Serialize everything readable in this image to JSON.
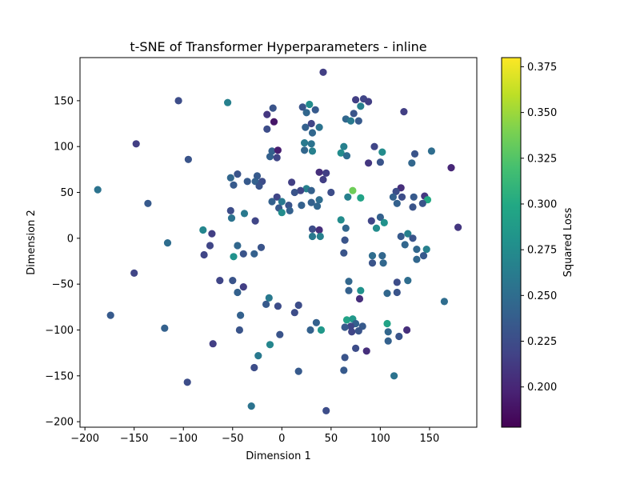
{
  "chart_data": {
    "type": "scatter",
    "title": "t-SNE of Transformer Hyperparameters - inline",
    "xlabel": "Dimension 1",
    "ylabel": "Dimension 2",
    "xlim": [
      -205,
      198
    ],
    "ylim": [
      -206,
      197
    ],
    "x_ticks": [
      -200,
      -150,
      -100,
      -50,
      0,
      50,
      100,
      150
    ],
    "y_ticks": [
      -200,
      -150,
      -100,
      -50,
      0,
      50,
      100,
      150
    ],
    "grid": false,
    "colorbar": {
      "label": "Squared Loss",
      "colormap": "viridis",
      "range": [
        0.178,
        0.38
      ],
      "ticks": [
        0.2,
        0.225,
        0.25,
        0.275,
        0.3,
        0.325,
        0.35,
        0.375
      ],
      "tick_labels": [
        "0.200",
        "0.225",
        "0.250",
        "0.275",
        "0.300",
        "0.325",
        "0.350",
        "0.375"
      ]
    },
    "points": [
      {
        "x": 42,
        "y": 181,
        "v": 0.215
      },
      {
        "x": -105,
        "y": 150,
        "v": 0.225
      },
      {
        "x": -55,
        "y": 148,
        "v": 0.265
      },
      {
        "x": 75,
        "y": 151,
        "v": 0.215
      },
      {
        "x": 83,
        "y": 152,
        "v": 0.22
      },
      {
        "x": 88,
        "y": 149,
        "v": 0.215
      },
      {
        "x": 28,
        "y": 146,
        "v": 0.275
      },
      {
        "x": -9,
        "y": 142,
        "v": 0.23
      },
      {
        "x": 21,
        "y": 143,
        "v": 0.23
      },
      {
        "x": 34,
        "y": 140,
        "v": 0.235
      },
      {
        "x": 80,
        "y": 144,
        "v": 0.265
      },
      {
        "x": 124,
        "y": 138,
        "v": 0.215
      },
      {
        "x": -15,
        "y": 135,
        "v": 0.21
      },
      {
        "x": 25,
        "y": 137,
        "v": 0.245
      },
      {
        "x": 73,
        "y": 136,
        "v": 0.23
      },
      {
        "x": 65,
        "y": 130,
        "v": 0.245
      },
      {
        "x": 70,
        "y": 128,
        "v": 0.26
      },
      {
        "x": 78,
        "y": 128,
        "v": 0.235
      },
      {
        "x": -8,
        "y": 127,
        "v": 0.19
      },
      {
        "x": 30,
        "y": 125,
        "v": 0.22
      },
      {
        "x": 24,
        "y": 121,
        "v": 0.24
      },
      {
        "x": 38,
        "y": 121,
        "v": 0.255
      },
      {
        "x": -15,
        "y": 119,
        "v": 0.225
      },
      {
        "x": 31,
        "y": 115,
        "v": 0.245
      },
      {
        "x": 23,
        "y": 104,
        "v": 0.26
      },
      {
        "x": 30,
        "y": 103,
        "v": 0.255
      },
      {
        "x": 63,
        "y": 100,
        "v": 0.265
      },
      {
        "x": 94,
        "y": 100,
        "v": 0.22
      },
      {
        "x": 152,
        "y": 95,
        "v": 0.25
      },
      {
        "x": -10,
        "y": 95,
        "v": 0.24
      },
      {
        "x": -4,
        "y": 96,
        "v": 0.195
      },
      {
        "x": 23,
        "y": 96,
        "v": 0.245
      },
      {
        "x": 31,
        "y": 95,
        "v": 0.265
      },
      {
        "x": 60,
        "y": 93,
        "v": 0.275
      },
      {
        "x": 102,
        "y": 94,
        "v": 0.275
      },
      {
        "x": 135,
        "y": 92,
        "v": 0.23
      },
      {
        "x": -12,
        "y": 89,
        "v": 0.24
      },
      {
        "x": -5,
        "y": 88,
        "v": 0.22
      },
      {
        "x": 66,
        "y": 90,
        "v": 0.25
      },
      {
        "x": -95,
        "y": 86,
        "v": 0.23
      },
      {
        "x": 88,
        "y": 82,
        "v": 0.21
      },
      {
        "x": 100,
        "y": 83,
        "v": 0.23
      },
      {
        "x": 132,
        "y": 82,
        "v": 0.245
      },
      {
        "x": 172,
        "y": 77,
        "v": 0.2
      },
      {
        "x": -148,
        "y": 103,
        "v": 0.215
      },
      {
        "x": 38,
        "y": 72,
        "v": 0.205
      },
      {
        "x": 45,
        "y": 71,
        "v": 0.215
      },
      {
        "x": -45,
        "y": 70,
        "v": 0.23
      },
      {
        "x": -25,
        "y": 68,
        "v": 0.235
      },
      {
        "x": -52,
        "y": 66,
        "v": 0.245
      },
      {
        "x": 42,
        "y": 64,
        "v": 0.215
      },
      {
        "x": -35,
        "y": 62,
        "v": 0.235
      },
      {
        "x": -27,
        "y": 62,
        "v": 0.24
      },
      {
        "x": -20,
        "y": 62,
        "v": 0.225
      },
      {
        "x": 10,
        "y": 61,
        "v": 0.215
      },
      {
        "x": -23,
        "y": 57,
        "v": 0.23
      },
      {
        "x": -49,
        "y": 58,
        "v": 0.235
      },
      {
        "x": 121,
        "y": 55,
        "v": 0.205
      },
      {
        "x": 25,
        "y": 54,
        "v": 0.265
      },
      {
        "x": 72,
        "y": 52,
        "v": 0.335
      },
      {
        "x": 19,
        "y": 52,
        "v": 0.22
      },
      {
        "x": 30,
        "y": 52,
        "v": 0.24
      },
      {
        "x": 13,
        "y": 50,
        "v": 0.23
      },
      {
        "x": 50,
        "y": 50,
        "v": 0.225
      },
      {
        "x": 116,
        "y": 51,
        "v": 0.225
      },
      {
        "x": -187,
        "y": 53,
        "v": 0.255
      },
      {
        "x": 67,
        "y": 45,
        "v": 0.265
      },
      {
        "x": 80,
        "y": 44,
        "v": 0.295
      },
      {
        "x": 113,
        "y": 45,
        "v": 0.24
      },
      {
        "x": 122,
        "y": 45,
        "v": 0.225
      },
      {
        "x": 134,
        "y": 45,
        "v": 0.235
      },
      {
        "x": 145,
        "y": 46,
        "v": 0.21
      },
      {
        "x": -5,
        "y": 45,
        "v": 0.22
      },
      {
        "x": 148,
        "y": 42,
        "v": 0.3
      },
      {
        "x": 143,
        "y": 38,
        "v": 0.23
      },
      {
        "x": -136,
        "y": 38,
        "v": 0.235
      },
      {
        "x": 38,
        "y": 42,
        "v": 0.25
      },
      {
        "x": -10,
        "y": 40,
        "v": 0.24
      },
      {
        "x": 0,
        "y": 40,
        "v": 0.26
      },
      {
        "x": 7,
        "y": 36,
        "v": 0.23
      },
      {
        "x": 20,
        "y": 36,
        "v": 0.24
      },
      {
        "x": 30,
        "y": 39,
        "v": 0.24
      },
      {
        "x": 36,
        "y": 35,
        "v": 0.245
      },
      {
        "x": 117,
        "y": 38,
        "v": 0.24
      },
      {
        "x": 133,
        "y": 34,
        "v": 0.23
      },
      {
        "x": -3,
        "y": 33,
        "v": 0.235
      },
      {
        "x": 8,
        "y": 30,
        "v": 0.24
      },
      {
        "x": 0,
        "y": 28,
        "v": 0.275
      },
      {
        "x": 60,
        "y": 20,
        "v": 0.275
      },
      {
        "x": 100,
        "y": 23,
        "v": 0.24
      },
      {
        "x": -52,
        "y": 30,
        "v": 0.225
      },
      {
        "x": -38,
        "y": 27,
        "v": 0.26
      },
      {
        "x": -51,
        "y": 22,
        "v": 0.255
      },
      {
        "x": -27,
        "y": 19,
        "v": 0.22
      },
      {
        "x": 91,
        "y": 19,
        "v": 0.22
      },
      {
        "x": 96,
        "y": 11,
        "v": 0.275
      },
      {
        "x": 104,
        "y": 17,
        "v": 0.28
      },
      {
        "x": 31,
        "y": 10,
        "v": 0.225
      },
      {
        "x": 38,
        "y": 9,
        "v": 0.205
      },
      {
        "x": 65,
        "y": 11,
        "v": 0.245
      },
      {
        "x": 179,
        "y": 12,
        "v": 0.21
      },
      {
        "x": -80,
        "y": 9,
        "v": 0.27
      },
      {
        "x": -71,
        "y": 5,
        "v": 0.215
      },
      {
        "x": 128,
        "y": 5,
        "v": 0.265
      },
      {
        "x": 31,
        "y": 2,
        "v": 0.26
      },
      {
        "x": 39,
        "y": 2,
        "v": 0.265
      },
      {
        "x": 121,
        "y": 2,
        "v": 0.235
      },
      {
        "x": -116,
        "y": -5,
        "v": 0.25
      },
      {
        "x": 64,
        "y": -2,
        "v": 0.23
      },
      {
        "x": 133,
        "y": 0,
        "v": 0.23
      },
      {
        "x": -45,
        "y": -8,
        "v": 0.245
      },
      {
        "x": -73,
        "y": -8,
        "v": 0.22
      },
      {
        "x": -21,
        "y": -10,
        "v": 0.23
      },
      {
        "x": 125,
        "y": -7,
        "v": 0.245
      },
      {
        "x": 147,
        "y": -12,
        "v": 0.265
      },
      {
        "x": 137,
        "y": -12,
        "v": 0.245
      },
      {
        "x": -49,
        "y": -20,
        "v": 0.28
      },
      {
        "x": -39,
        "y": -17,
        "v": 0.23
      },
      {
        "x": -28,
        "y": -17,
        "v": 0.24
      },
      {
        "x": -79,
        "y": -18,
        "v": 0.22
      },
      {
        "x": 63,
        "y": -16,
        "v": 0.23
      },
      {
        "x": 92,
        "y": -19,
        "v": 0.25
      },
      {
        "x": 102,
        "y": -19,
        "v": 0.245
      },
      {
        "x": 144,
        "y": -19,
        "v": 0.235
      },
      {
        "x": 137,
        "y": -23,
        "v": 0.245
      },
      {
        "x": 92,
        "y": -27,
        "v": 0.23
      },
      {
        "x": 103,
        "y": -27,
        "v": 0.245
      },
      {
        "x": -150,
        "y": -38,
        "v": 0.22
      },
      {
        "x": -50,
        "y": -46,
        "v": 0.23
      },
      {
        "x": -63,
        "y": -46,
        "v": 0.22
      },
      {
        "x": 128,
        "y": -46,
        "v": 0.25
      },
      {
        "x": 117,
        "y": -48,
        "v": 0.225
      },
      {
        "x": 68,
        "y": -47,
        "v": 0.245
      },
      {
        "x": -39,
        "y": -53,
        "v": 0.215
      },
      {
        "x": -45,
        "y": -59,
        "v": 0.24
      },
      {
        "x": 80,
        "y": -57,
        "v": 0.28
      },
      {
        "x": 68,
        "y": -57,
        "v": 0.24
      },
      {
        "x": 107,
        "y": -60,
        "v": 0.245
      },
      {
        "x": 117,
        "y": -59,
        "v": 0.23
      },
      {
        "x": -13,
        "y": -65,
        "v": 0.26
      },
      {
        "x": 79,
        "y": -66,
        "v": 0.205
      },
      {
        "x": 165,
        "y": -69,
        "v": 0.25
      },
      {
        "x": -16,
        "y": -72,
        "v": 0.235
      },
      {
        "x": -4,
        "y": -74,
        "v": 0.225
      },
      {
        "x": 17,
        "y": -73,
        "v": 0.225
      },
      {
        "x": -174,
        "y": -84,
        "v": 0.235
      },
      {
        "x": -42,
        "y": -84,
        "v": 0.24
      },
      {
        "x": 13,
        "y": -81,
        "v": 0.225
      },
      {
        "x": 66,
        "y": -89,
        "v": 0.295
      },
      {
        "x": 72,
        "y": -88,
        "v": 0.285
      },
      {
        "x": 75,
        "y": -93,
        "v": 0.24
      },
      {
        "x": 35,
        "y": -92,
        "v": 0.24
      },
      {
        "x": 70,
        "y": -96,
        "v": 0.22
      },
      {
        "x": 64,
        "y": -97,
        "v": 0.235
      },
      {
        "x": 107,
        "y": -93,
        "v": 0.295
      },
      {
        "x": 82,
        "y": -96,
        "v": 0.235
      },
      {
        "x": -119,
        "y": -98,
        "v": 0.24
      },
      {
        "x": -43,
        "y": -100,
        "v": 0.23
      },
      {
        "x": 29,
        "y": -100,
        "v": 0.24
      },
      {
        "x": 40,
        "y": -100,
        "v": 0.285
      },
      {
        "x": 71,
        "y": -102,
        "v": 0.22
      },
      {
        "x": 78,
        "y": -101,
        "v": 0.23
      },
      {
        "x": 108,
        "y": -102,
        "v": 0.245
      },
      {
        "x": 127,
        "y": -100,
        "v": 0.205
      },
      {
        "x": -2,
        "y": -105,
        "v": 0.23
      },
      {
        "x": 119,
        "y": -107,
        "v": 0.23
      },
      {
        "x": 108,
        "y": -112,
        "v": 0.24
      },
      {
        "x": -70,
        "y": -115,
        "v": 0.215
      },
      {
        "x": -12,
        "y": -116,
        "v": 0.27
      },
      {
        "x": 75,
        "y": -120,
        "v": 0.225
      },
      {
        "x": 86,
        "y": -123,
        "v": 0.205
      },
      {
        "x": -24,
        "y": -128,
        "v": 0.26
      },
      {
        "x": 64,
        "y": -130,
        "v": 0.23
      },
      {
        "x": -28,
        "y": -141,
        "v": 0.225
      },
      {
        "x": 17,
        "y": -145,
        "v": 0.235
      },
      {
        "x": 63,
        "y": -144,
        "v": 0.235
      },
      {
        "x": 114,
        "y": -150,
        "v": 0.255
      },
      {
        "x": -96,
        "y": -157,
        "v": 0.225
      },
      {
        "x": -31,
        "y": -183,
        "v": 0.255
      },
      {
        "x": 45,
        "y": -188,
        "v": 0.225
      }
    ]
  }
}
